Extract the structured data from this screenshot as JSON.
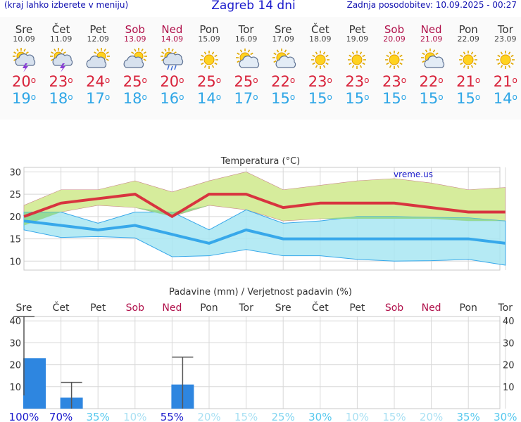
{
  "header": {
    "left_note": "(kraj lahko izberete v meniju)",
    "title": "Zagreb 14 dni",
    "updated": "Zadnja posodobitev: 10.09.2025 - 00:27"
  },
  "days": [
    {
      "name": "Sre",
      "date": "10.09",
      "weekend": false,
      "icon": "thunderstorm-icon",
      "tmax": "20",
      "tmin": "19"
    },
    {
      "name": "Čet",
      "date": "11.09",
      "weekend": false,
      "icon": "thunderstorm-icon",
      "tmax": "23",
      "tmin": "18"
    },
    {
      "name": "Pet",
      "date": "12.09",
      "weekend": false,
      "icon": "partly-cloudy-icon",
      "tmax": "24",
      "tmin": "17"
    },
    {
      "name": "Sob",
      "date": "13.09",
      "weekend": true,
      "icon": "partly-cloudy-icon",
      "tmax": "25",
      "tmin": "18"
    },
    {
      "name": "Ned",
      "date": "14.09",
      "weekend": true,
      "icon": "sun-cloud-rain-icon",
      "tmax": "20",
      "tmin": "16"
    },
    {
      "name": "Pon",
      "date": "15.09",
      "weekend": false,
      "icon": "sun-icon",
      "tmax": "25",
      "tmin": "14"
    },
    {
      "name": "Tor",
      "date": "16.09",
      "weekend": false,
      "icon": "sun-cloud-icon",
      "tmax": "25",
      "tmin": "17"
    },
    {
      "name": "Sre",
      "date": "17.09",
      "weekend": false,
      "icon": "sun-cloud-icon",
      "tmax": "22",
      "tmin": "15"
    },
    {
      "name": "Čet",
      "date": "18.09",
      "weekend": false,
      "icon": "sun-icon",
      "tmax": "23",
      "tmin": "15"
    },
    {
      "name": "Pet",
      "date": "19.09",
      "weekend": false,
      "icon": "sun-icon",
      "tmax": "23",
      "tmin": "15"
    },
    {
      "name": "Sob",
      "date": "20.09",
      "weekend": true,
      "icon": "sun-icon",
      "tmax": "23",
      "tmin": "15"
    },
    {
      "name": "Ned",
      "date": "21.09",
      "weekend": true,
      "icon": "sun-cloud-icon",
      "tmax": "22",
      "tmin": "15"
    },
    {
      "name": "Pon",
      "date": "22.09",
      "weekend": false,
      "icon": "sun-icon",
      "tmax": "21",
      "tmin": "15"
    },
    {
      "name": "Tor",
      "date": "23.09",
      "weekend": false,
      "icon": "sun-icon",
      "tmax": "21",
      "tmin": "14"
    }
  ],
  "colors": {
    "max_line": "#d8343f",
    "min_line": "#37a8ea",
    "max_band": "#d6ec9c",
    "min_band": "#a8e6f2",
    "overlap": "#8fd88a",
    "precip_bar": "#2e86e0",
    "grid": "#d8d8d8",
    "weekend": "#b0104a"
  },
  "chart_data": [
    {
      "type": "line",
      "title": "Temperatura (°C)",
      "watermark": "vreme.us",
      "ylim": [
        8,
        31
      ],
      "yticks": [
        10,
        15,
        20,
        25,
        30
      ],
      "grid": true,
      "x": [
        "10.09",
        "11.09",
        "12.09",
        "13.09",
        "14.09",
        "15.09",
        "16.09",
        "17.09",
        "18.09",
        "19.09",
        "20.09",
        "21.09",
        "22.09",
        "23.09"
      ],
      "series": [
        {
          "role": "max",
          "values": [
            20,
            23,
            24,
            25,
            20,
            25,
            25,
            22,
            23,
            23,
            23,
            22,
            21,
            21
          ]
        },
        {
          "role": "min",
          "values": [
            19,
            18,
            17,
            18,
            16,
            14,
            17,
            15,
            15,
            15,
            15,
            15,
            15,
            14
          ]
        }
      ],
      "max_band": {
        "upper": [
          22.5,
          26,
          26,
          28,
          25.5,
          28,
          30,
          26,
          27,
          28,
          28.5,
          27.5,
          26,
          26.5
        ],
        "lower": [
          18,
          21,
          22.5,
          22,
          20,
          22.5,
          21.5,
          19,
          19.5,
          19.5,
          19.5,
          19.5,
          19,
          19
        ]
      },
      "min_band": {
        "upper": [
          21,
          21,
          18.5,
          21,
          21,
          17,
          21.5,
          18.5,
          19,
          20,
          20,
          19.8,
          19.7,
          19
        ],
        "lower": [
          17,
          15.3,
          15.5,
          15.2,
          11,
          11.2,
          12.6,
          11.2,
          11.2,
          10.4,
          10,
          10.1,
          10.4,
          9.1
        ]
      }
    },
    {
      "type": "bar",
      "title": "Padavine (mm) / Verjetnost padavin (%)",
      "ylim": [
        0,
        42
      ],
      "yticks": [
        0,
        10,
        20,
        30,
        40
      ],
      "grid": true,
      "categories": [
        "Sre",
        "Čet",
        "Pet",
        "Sob",
        "Ned",
        "Pon",
        "Tor",
        "Sre",
        "Čet",
        "Pet",
        "Sob",
        "Ned",
        "Pon",
        "Tor"
      ],
      "values": [
        23,
        5,
        0,
        0,
        11,
        0,
        0,
        0,
        0,
        0,
        0,
        0,
        0,
        0
      ],
      "error_max": [
        42,
        12,
        null,
        null,
        23.5,
        null,
        null,
        null,
        null,
        null,
        null,
        null,
        null,
        null
      ],
      "error_min": [
        6,
        0,
        null,
        null,
        0,
        null,
        null,
        null,
        null,
        null,
        null,
        null,
        null,
        null
      ],
      "probability": [
        "100%",
        "70%",
        "35%",
        "10%",
        "55%",
        "20%",
        "15%",
        "25%",
        "30%",
        "10%",
        "15%",
        "20%",
        "35%",
        "30%"
      ],
      "prob_colors": [
        "#1a1acc",
        "#1a1acc",
        "#55c8ee",
        "#a9e0f3",
        "#1a1acc",
        "#a9e0f3",
        "#a9e0f3",
        "#7fd4f0",
        "#55c8ee",
        "#a9e0f3",
        "#a9e0f3",
        "#a9e0f3",
        "#55c8ee",
        "#55c8ee"
      ]
    }
  ]
}
